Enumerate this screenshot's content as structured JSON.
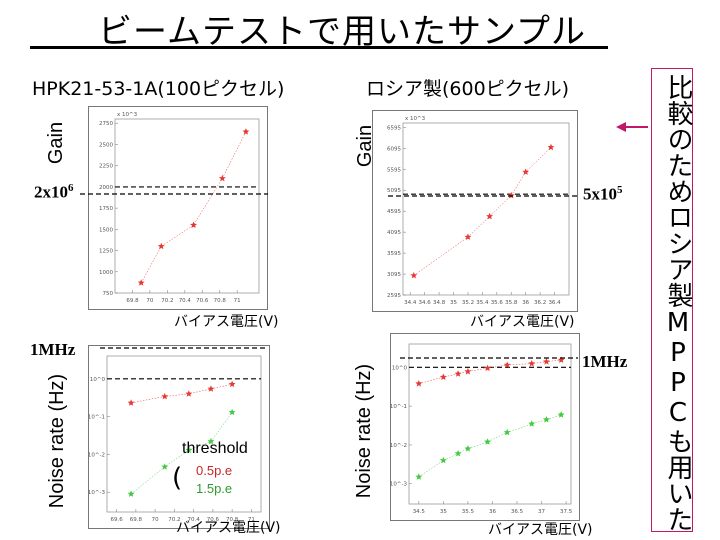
{
  "title": "ビームテストで用いたサンプル",
  "left_title": "HPK21-53-1A(100ピクセル)",
  "right_title": "ロシア製(600ピクセル)",
  "side_note": "比較のためロシア製MPPCも用いた",
  "annotations": {
    "gain_left_ref": "2x10",
    "gain_left_ref_exp": "6",
    "gain_right_ref": "5x10",
    "gain_right_ref_exp": "5",
    "noise_left_ref": "1MHz",
    "noise_right_ref": "1MHz",
    "threshold_label": "threshold",
    "threshold_paren": "(",
    "threshold_1": "0.5p.e",
    "threshold_2": "1.5p.e"
  },
  "colors": {
    "red": "#e53935",
    "green": "#43c943",
    "arrow": "#c2186a"
  },
  "chart_data": [
    {
      "id": "gain_left",
      "type": "scatter",
      "xlabel": "バイアス電圧(V)",
      "ylabel": "Gain",
      "yexp_label": "x 10^3",
      "xlim": [
        69.6,
        71.25
      ],
      "ylim": [
        750,
        2800
      ],
      "xticks": [
        69.8,
        70,
        70.2,
        70.4,
        70.6,
        70.8,
        71
      ],
      "yticks": [
        750,
        1000,
        1250,
        1500,
        1750,
        2000,
        2250,
        2500,
        2750
      ],
      "ref_line": 2000,
      "series": [
        {
          "name": "gain",
          "color": "red",
          "x": [
            69.9,
            70.13,
            70.5,
            70.83,
            71.1
          ],
          "y": [
            870,
            1300,
            1550,
            2100,
            2650
          ]
        }
      ]
    },
    {
      "id": "gain_right",
      "type": "scatter",
      "xlabel": "バイアス電圧(V)",
      "ylabel": "Gain",
      "yexp_label": "x 10^3",
      "xlim": [
        34.3,
        36.6
      ],
      "ylim": [
        2595,
        6700
      ],
      "xticks": [
        34.4,
        34.6,
        34.8,
        35,
        35.2,
        35.4,
        35.6,
        35.8,
        36,
        36.2,
        36.4
      ],
      "yticks": [
        2595,
        3095,
        3595,
        4095,
        4595,
        5095,
        5595,
        6095,
        6595
      ],
      "ref_line": 5000,
      "series": [
        {
          "name": "gain",
          "color": "red",
          "x": [
            34.45,
            35.2,
            35.5,
            35.8,
            36.0,
            36.35
          ],
          "y": [
            3060,
            3980,
            4470,
            4970,
            5530,
            6120
          ]
        }
      ]
    },
    {
      "id": "noise_left",
      "type": "scatter",
      "xlabel": "バイアス電圧(V)",
      "ylabel": "Noise rate (Hz)",
      "yscale": "log",
      "xlim": [
        69.5,
        71.1
      ],
      "ylim": [
        0.0003,
        4
      ],
      "xticks": [
        69.6,
        69.8,
        70,
        70.2,
        70.4,
        70.6,
        70.8,
        71
      ],
      "yticks": [
        0.001,
        0.01,
        0.1,
        1
      ],
      "yticklabels": [
        "10^-3",
        "10^-2",
        "10^-1",
        "10^0"
      ],
      "ref_line": 1,
      "series": [
        {
          "name": "0.5p.e",
          "color": "red",
          "x": [
            69.75,
            70.1,
            70.35,
            70.58,
            70.8
          ],
          "y": [
            0.23,
            0.34,
            0.4,
            0.54,
            0.72
          ]
        },
        {
          "name": "1.5p.e",
          "color": "green",
          "x": [
            69.75,
            70.1,
            70.35,
            70.58,
            70.8
          ],
          "y": [
            0.0009,
            0.0047,
            0.013,
            0.022,
            0.13
          ]
        }
      ]
    },
    {
      "id": "noise_right",
      "type": "scatter",
      "xlabel": "バイアス電圧(V)",
      "ylabel": "Noise rate (Hz)",
      "yscale": "log",
      "xlim": [
        34.3,
        37.6
      ],
      "ylim": [
        0.0003,
        4
      ],
      "xticks": [
        34.5,
        35,
        35.5,
        36,
        36.5,
        37,
        37.5
      ],
      "yticks": [
        0.001,
        0.01,
        0.1,
        1
      ],
      "yticklabels": [
        "10^-3",
        "10^-2",
        "10^-1",
        "10^0"
      ],
      "ref_line": 1,
      "series": [
        {
          "name": "0.5p.e",
          "color": "red",
          "x": [
            34.5,
            35.0,
            35.3,
            35.5,
            35.9,
            36.3,
            36.8,
            37.1,
            37.4
          ],
          "y": [
            0.38,
            0.56,
            0.68,
            0.78,
            0.95,
            1.15,
            1.25,
            1.4,
            1.55
          ]
        },
        {
          "name": "1.5p.e",
          "color": "green",
          "x": [
            34.5,
            35.0,
            35.3,
            35.5,
            35.9,
            36.3,
            36.8,
            37.1,
            37.4
          ],
          "y": [
            0.0015,
            0.004,
            0.006,
            0.008,
            0.012,
            0.021,
            0.035,
            0.045,
            0.06
          ]
        }
      ]
    }
  ]
}
